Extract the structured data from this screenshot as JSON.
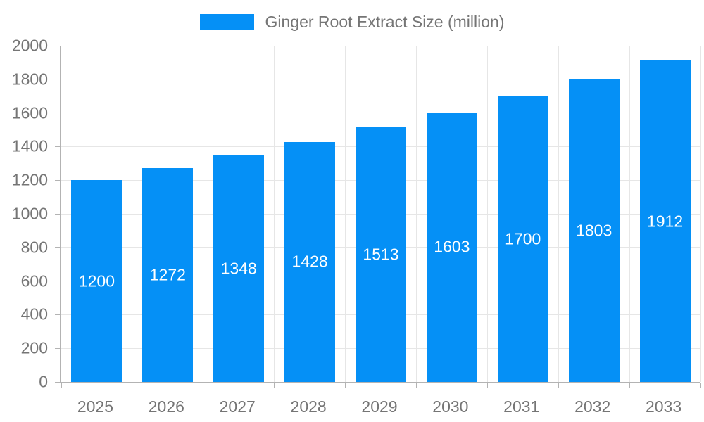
{
  "legend": {
    "label": "Ginger Root Extract Size (million)"
  },
  "colors": {
    "bar": "#0590f6",
    "grid": "#e6e6e6",
    "axis": "#b3b3b3",
    "text": "#757575",
    "bar_label": "#ffffff"
  },
  "chart_data": {
    "type": "bar",
    "title": "",
    "legend": "Ginger Root Extract Size (million)",
    "legend_position": "top-center",
    "categories": [
      "2025",
      "2026",
      "2027",
      "2028",
      "2029",
      "2030",
      "2031",
      "2032",
      "2033"
    ],
    "values": [
      1200,
      1272,
      1348,
      1428,
      1513,
      1603,
      1700,
      1803,
      1912
    ],
    "xlabel": "",
    "ylabel": "",
    "ylim": [
      0,
      2000
    ],
    "ytick_step": 200,
    "grid": true,
    "bar_value_labels": "inside-center"
  }
}
